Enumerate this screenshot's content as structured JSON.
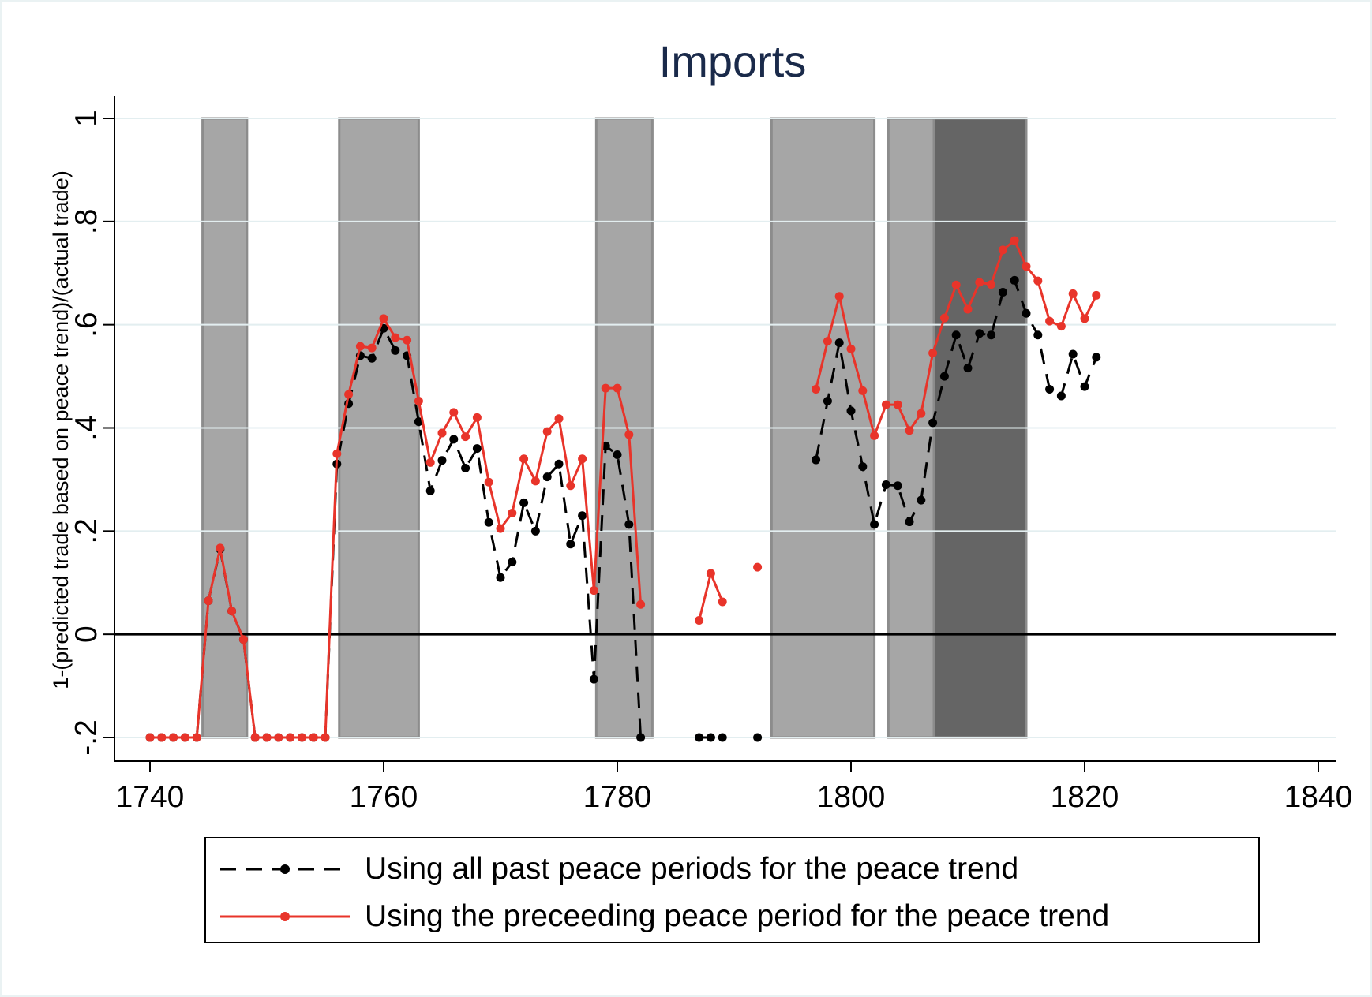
{
  "chart_data": {
    "type": "line",
    "title": "Imports",
    "ylabel": "1-(predicted trade based on peace trend)/(actual trade)",
    "xlabel": "",
    "xlim": [
      1740,
      1840
    ],
    "ylim": [
      -0.2,
      1
    ],
    "x_ticks": [
      1740,
      1760,
      1780,
      1800,
      1820,
      1840
    ],
    "x_tick_labels": [
      "1740",
      "1760",
      "1780",
      "1800",
      "1820",
      "1840"
    ],
    "y_ticks": [
      -0.2,
      0,
      0.2,
      0.4,
      0.6,
      0.8,
      1
    ],
    "y_tick_labels": [
      "-.2",
      "0",
      ".2",
      ".4",
      ".6",
      ".8",
      "1"
    ],
    "grid": true,
    "reference_line_y": 0,
    "war_periods": [
      {
        "start": 1744.5,
        "end": 1748.3,
        "shade": "#a6a6a6"
      },
      {
        "start": 1756.2,
        "end": 1763.0,
        "shade": "#a6a6a6"
      },
      {
        "start": 1778.2,
        "end": 1783.0,
        "shade": "#a6a6a6"
      },
      {
        "start": 1793.2,
        "end": 1802.0,
        "shade": "#a6a6a6"
      },
      {
        "start": 1803.2,
        "end": 1807.1,
        "shade": "#a6a6a6"
      },
      {
        "start": 1807.1,
        "end": 1815.0,
        "shade": "#656565"
      }
    ],
    "legend_position": "bottom",
    "series": [
      {
        "name": "Using all past peace periods for the peace trend",
        "color": "#000000",
        "dash": "dashed",
        "segments": [
          [
            [
              1740,
              -0.2
            ],
            [
              1741,
              -0.2
            ],
            [
              1742,
              -0.2
            ],
            [
              1743,
              -0.2
            ],
            [
              1744,
              -0.2
            ],
            [
              1745,
              0.065
            ],
            [
              1746,
              0.165
            ],
            [
              1747,
              0.045
            ],
            [
              1748,
              -0.01
            ],
            [
              1749,
              -0.2
            ],
            [
              1750,
              -0.2
            ],
            [
              1751,
              -0.2
            ],
            [
              1752,
              -0.2
            ],
            [
              1753,
              -0.2
            ],
            [
              1754,
              -0.2
            ],
            [
              1755,
              -0.2
            ],
            [
              1756,
              0.33
            ],
            [
              1757,
              0.447
            ],
            [
              1758,
              0.54
            ],
            [
              1759,
              0.535
            ],
            [
              1760,
              0.593
            ],
            [
              1761,
              0.55
            ],
            [
              1762,
              0.54
            ],
            [
              1763,
              0.412
            ],
            [
              1764,
              0.278
            ],
            [
              1765,
              0.337
            ],
            [
              1766,
              0.378
            ],
            [
              1767,
              0.322
            ],
            [
              1768,
              0.36
            ],
            [
              1769,
              0.217
            ],
            [
              1770,
              0.11
            ],
            [
              1771,
              0.14
            ],
            [
              1772,
              0.255
            ],
            [
              1773,
              0.2
            ],
            [
              1774,
              0.305
            ],
            [
              1775,
              0.33
            ],
            [
              1776,
              0.175
            ],
            [
              1777,
              0.23
            ],
            [
              1778,
              -0.087
            ],
            [
              1779,
              0.365
            ],
            [
              1780,
              0.348
            ],
            [
              1781,
              0.213
            ],
            [
              1782,
              -0.2
            ]
          ],
          [
            [
              1787,
              -0.2
            ],
            [
              1788,
              -0.2
            ],
            [
              1789,
              -0.2
            ]
          ],
          [
            [
              1792,
              -0.2
            ]
          ],
          [
            [
              1797,
              0.338
            ],
            [
              1798,
              0.452
            ],
            [
              1799,
              0.565
            ],
            [
              1800,
              0.433
            ],
            [
              1801,
              0.325
            ],
            [
              1802,
              0.213
            ],
            [
              1803,
              0.29
            ],
            [
              1804,
              0.288
            ],
            [
              1805,
              0.218
            ],
            [
              1806,
              0.26
            ],
            [
              1807,
              0.41
            ],
            [
              1808,
              0.5
            ],
            [
              1809,
              0.58
            ],
            [
              1810,
              0.516
            ],
            [
              1811,
              0.583
            ],
            [
              1812,
              0.58
            ],
            [
              1813,
              0.663
            ],
            [
              1814,
              0.686
            ],
            [
              1815,
              0.622
            ],
            [
              1816,
              0.58
            ],
            [
              1817,
              0.475
            ],
            [
              1818,
              0.462
            ],
            [
              1819,
              0.543
            ],
            [
              1820,
              0.48
            ],
            [
              1821,
              0.537
            ]
          ]
        ]
      },
      {
        "name": "Using the preceeding peace period for the peace trend",
        "color": "#e8342a",
        "dash": "solid",
        "segments": [
          [
            [
              1740,
              -0.2
            ],
            [
              1741,
              -0.2
            ],
            [
              1742,
              -0.2
            ],
            [
              1743,
              -0.2
            ],
            [
              1744,
              -0.2
            ],
            [
              1745,
              0.065
            ],
            [
              1746,
              0.167
            ],
            [
              1747,
              0.045
            ],
            [
              1748,
              -0.01
            ],
            [
              1749,
              -0.2
            ],
            [
              1750,
              -0.2
            ],
            [
              1751,
              -0.2
            ],
            [
              1752,
              -0.2
            ],
            [
              1753,
              -0.2
            ],
            [
              1754,
              -0.2
            ],
            [
              1755,
              -0.2
            ],
            [
              1756,
              0.35
            ],
            [
              1757,
              0.465
            ],
            [
              1758,
              0.558
            ],
            [
              1759,
              0.555
            ],
            [
              1760,
              0.612
            ],
            [
              1761,
              0.575
            ],
            [
              1762,
              0.57
            ],
            [
              1763,
              0.452
            ],
            [
              1764,
              0.333
            ],
            [
              1765,
              0.39
            ],
            [
              1766,
              0.43
            ],
            [
              1767,
              0.383
            ],
            [
              1768,
              0.42
            ],
            [
              1769,
              0.295
            ],
            [
              1770,
              0.205
            ],
            [
              1771,
              0.235
            ],
            [
              1772,
              0.34
            ],
            [
              1773,
              0.297
            ],
            [
              1774,
              0.393
            ],
            [
              1775,
              0.418
            ],
            [
              1776,
              0.288
            ],
            [
              1777,
              0.34
            ],
            [
              1778,
              0.085
            ],
            [
              1779,
              0.477
            ],
            [
              1780,
              0.477
            ],
            [
              1781,
              0.387
            ],
            [
              1782,
              0.058
            ]
          ],
          [
            [
              1787,
              0.027
            ],
            [
              1788,
              0.118
            ],
            [
              1789,
              0.063
            ]
          ],
          [
            [
              1792,
              0.13
            ]
          ],
          [
            [
              1797,
              0.475
            ],
            [
              1798,
              0.568
            ],
            [
              1799,
              0.655
            ],
            [
              1800,
              0.553
            ],
            [
              1801,
              0.472
            ],
            [
              1802,
              0.385
            ],
            [
              1803,
              0.445
            ],
            [
              1804,
              0.445
            ],
            [
              1805,
              0.395
            ],
            [
              1806,
              0.428
            ],
            [
              1807,
              0.545
            ],
            [
              1808,
              0.613
            ],
            [
              1809,
              0.677
            ],
            [
              1810,
              0.63
            ],
            [
              1811,
              0.682
            ],
            [
              1812,
              0.678
            ],
            [
              1813,
              0.745
            ],
            [
              1814,
              0.763
            ],
            [
              1815,
              0.713
            ],
            [
              1816,
              0.685
            ],
            [
              1817,
              0.607
            ],
            [
              1818,
              0.597
            ],
            [
              1819,
              0.66
            ],
            [
              1820,
              0.612
            ],
            [
              1821,
              0.657
            ]
          ]
        ]
      }
    ]
  }
}
